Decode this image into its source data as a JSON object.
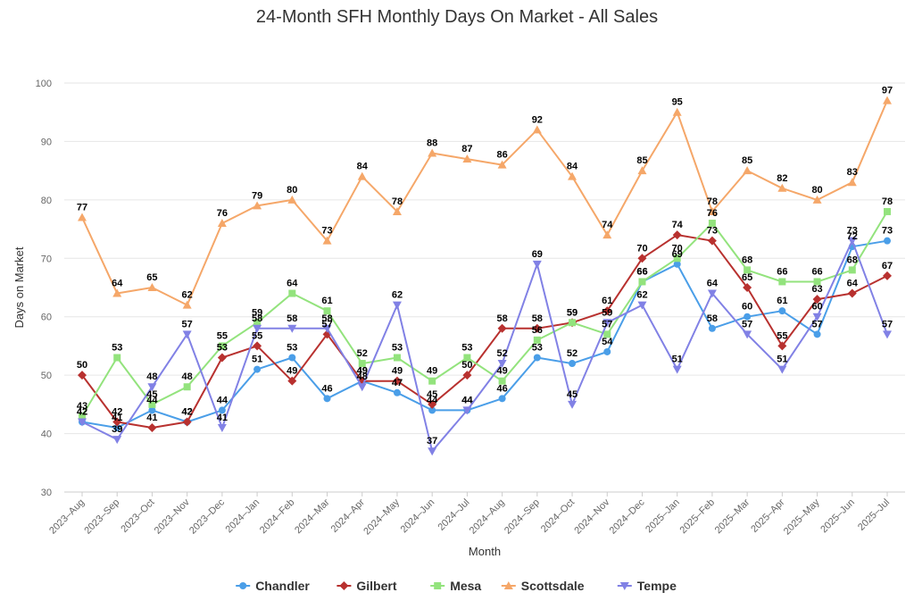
{
  "chart_data": {
    "type": "line",
    "title": "24-Month SFH Monthly Days On Market - All Sales",
    "xlabel": "Month",
    "ylabel": "Days on Market",
    "ylim": [
      30,
      100
    ],
    "yticks": [
      30,
      40,
      50,
      60,
      70,
      80,
      90,
      100
    ],
    "grid": "horizontal",
    "legend_position": "bottom",
    "categories": [
      "2023–Aug",
      "2023–Sep",
      "2023–Oct",
      "2023–Nov",
      "2023–Dec",
      "2024–Jan",
      "2024–Feb",
      "2024–Mar",
      "2024–Apr",
      "2024–May",
      "2024–Jun",
      "2024–Jul",
      "2024–Aug",
      "2024–Sep",
      "2024–Oct",
      "2024–Nov",
      "2024–Dec",
      "2025–Jan",
      "2025–Feb",
      "2025–Mar",
      "2025–Apr",
      "2025–May",
      "2025–Jun",
      "2025–Jul"
    ],
    "series": [
      {
        "name": "Chandler",
        "color": "#4a9ee8",
        "marker": "circle",
        "values": [
          42,
          41,
          44,
          42,
          44,
          51,
          53,
          46,
          49,
          47,
          44,
          44,
          46,
          53,
          52,
          54,
          66,
          69,
          58,
          60,
          61,
          57,
          72,
          73
        ]
      },
      {
        "name": "Gilbert",
        "color": "#b8312f",
        "marker": "diamond",
        "values": [
          50,
          42,
          41,
          42,
          53,
          55,
          49,
          57,
          49,
          49,
          45,
          50,
          58,
          58,
          59,
          61,
          70,
          74,
          73,
          65,
          55,
          63,
          64,
          67
        ]
      },
      {
        "name": "Mesa",
        "color": "#93e37d",
        "marker": "square",
        "values": [
          43,
          53,
          45,
          48,
          55,
          59,
          64,
          61,
          52,
          53,
          49,
          53,
          49,
          56,
          59,
          57,
          66,
          70,
          76,
          68,
          66,
          66,
          68,
          78
        ]
      },
      {
        "name": "Scottsdale",
        "color": "#f5a769",
        "marker": "triangle",
        "values": [
          77,
          64,
          65,
          62,
          76,
          79,
          80,
          73,
          84,
          78,
          88,
          87,
          86,
          92,
          84,
          74,
          85,
          95,
          78,
          85,
          82,
          80,
          83,
          97
        ]
      },
      {
        "name": "Tempe",
        "color": "#8181e5",
        "marker": "triangle-down",
        "values": [
          42,
          39,
          48,
          57,
          41,
          58,
          58,
          58,
          48,
          62,
          37,
          44,
          52,
          69,
          45,
          59,
          62,
          51,
          64,
          57,
          51,
          60,
          73,
          57
        ]
      }
    ]
  }
}
